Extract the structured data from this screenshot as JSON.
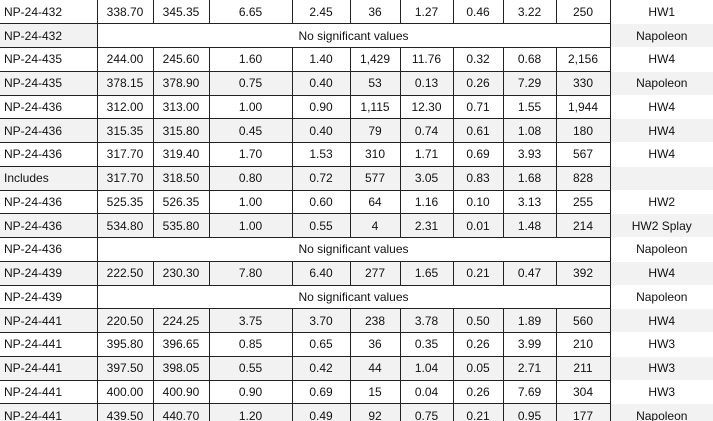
{
  "table": {
    "rows": [
      [
        "NP-24-432",
        "338.70",
        "345.35",
        "6.65",
        "2.45",
        "36",
        "1.27",
        "0.46",
        "3.22",
        "250",
        "HW1"
      ],
      [
        "NP-24-432",
        "No significant values",
        "Napoleon"
      ],
      [
        "NP-24-435",
        "244.00",
        "245.60",
        "1.60",
        "1.40",
        "1,429",
        "11.76",
        "0.32",
        "0.68",
        "2,156",
        "HW4"
      ],
      [
        "NP-24-435",
        "378.15",
        "378.90",
        "0.75",
        "0.40",
        "53",
        "0.13",
        "0.26",
        "7.29",
        "330",
        "Napoleon"
      ],
      [
        "NP-24-436",
        "312.00",
        "313.00",
        "1.00",
        "0.90",
        "1,115",
        "12.30",
        "0.71",
        "1.55",
        "1,944",
        "HW4"
      ],
      [
        "NP-24-436",
        "315.35",
        "315.80",
        "0.45",
        "0.40",
        "79",
        "0.74",
        "0.61",
        "1.08",
        "180",
        "HW4"
      ],
      [
        "NP-24-436",
        "317.70",
        "319.40",
        "1.70",
        "1.53",
        "310",
        "1.71",
        "0.69",
        "3.93",
        "567",
        "HW4"
      ],
      [
        "Includes",
        "317.70",
        "318.50",
        "0.80",
        "0.72",
        "577",
        "3.05",
        "0.83",
        "1.68",
        "828"
      ],
      [
        "NP-24-436",
        "525.35",
        "526.35",
        "1.00",
        "0.60",
        "64",
        "1.16",
        "0.10",
        "3.13",
        "255",
        "HW2"
      ],
      [
        "NP-24-436",
        "534.80",
        "535.80",
        "1.00",
        "0.55",
        "4",
        "2.31",
        "0.01",
        "1.48",
        "214",
        "HW2 Splay"
      ],
      [
        "NP-24-436",
        "No significant values",
        "Napoleon"
      ],
      [
        "NP-24-439",
        "222.50",
        "230.30",
        "7.80",
        "6.40",
        "277",
        "1.65",
        "0.21",
        "0.47",
        "392",
        "HW4"
      ],
      [
        "NP-24-439",
        "No significant values",
        "Napoleon"
      ],
      [
        "NP-24-441",
        "220.50",
        "224.25",
        "3.75",
        "3.70",
        "238",
        "3.78",
        "0.50",
        "1.89",
        "560",
        "HW4"
      ],
      [
        "NP-24-441",
        "395.80",
        "396.65",
        "0.85",
        "0.65",
        "36",
        "0.35",
        "0.26",
        "3.99",
        "210",
        "HW3"
      ],
      [
        "NP-24-441",
        "397.50",
        "398.05",
        "0.55",
        "0.42",
        "44",
        "1.04",
        "0.05",
        "2.71",
        "211",
        "HW3"
      ],
      [
        "NP-24-441",
        "400.00",
        "400.90",
        "0.90",
        "0.69",
        "15",
        "0.04",
        "0.26",
        "7.69",
        "304",
        "HW3"
      ],
      [
        "NP-24-441",
        "439.50",
        "440.70",
        "1.20",
        "0.49",
        "92",
        "0.75",
        "0.21",
        "0.95",
        "177",
        "Napoleon"
      ]
    ]
  }
}
